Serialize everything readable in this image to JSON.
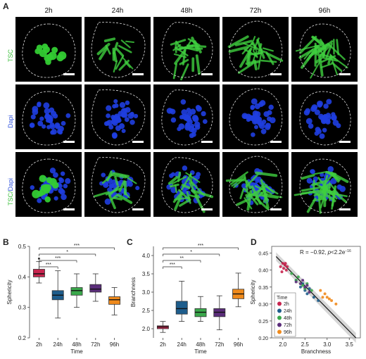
{
  "figure": {
    "panel_a_letter": "A",
    "panel_b_letter": "B",
    "panel_c_letter": "C",
    "panel_d_letter": "D",
    "timepoints": [
      "2h",
      "24h",
      "48h",
      "72h",
      "96h"
    ],
    "rows": [
      {
        "label": "TSC",
        "color": "#3cbf3c"
      },
      {
        "label": "Dapi",
        "color": "#3355dd"
      },
      {
        "label_a": "TSC",
        "label_sep": "/",
        "label_b": "Dapi"
      }
    ]
  },
  "chart_data": [
    {
      "type": "box",
      "panel": "B",
      "categories": [
        "2h",
        "24h",
        "48h",
        "72h",
        "96h"
      ],
      "colors": [
        "#c8254f",
        "#1e5d8c",
        "#3aa84b",
        "#5b2d7a",
        "#ef8a1c"
      ],
      "boxes": [
        {
          "min": 0.38,
          "q1": 0.4,
          "median": 0.41,
          "q3": 0.425,
          "max": 0.45
        },
        {
          "min": 0.265,
          "q1": 0.325,
          "median": 0.34,
          "q3": 0.355,
          "max": 0.42
        },
        {
          "min": 0.3,
          "q1": 0.34,
          "median": 0.355,
          "q3": 0.365,
          "max": 0.41
        },
        {
          "min": 0.32,
          "q1": 0.35,
          "median": 0.36,
          "q3": 0.375,
          "max": 0.41
        },
        {
          "min": 0.275,
          "q1": 0.31,
          "median": 0.325,
          "q3": 0.335,
          "max": 0.365
        }
      ],
      "outliers": [
        {
          "category": "2h",
          "value": 0.46
        }
      ],
      "ylim": [
        0.2,
        0.5
      ],
      "yticks": [
        "0.2",
        "0.3",
        "0.4",
        "0.5"
      ],
      "ylabel": "Sphericity",
      "xlabel": "Time",
      "significance": [
        {
          "to": "96h",
          "label": "***"
        },
        {
          "to": "72h",
          "label": "*"
        },
        {
          "to": "48h",
          "label": "***"
        },
        {
          "to": "24h",
          "label": "***"
        }
      ]
    },
    {
      "type": "box",
      "panel": "C",
      "categories": [
        "2h",
        "24h",
        "48h",
        "72h",
        "96h"
      ],
      "colors": [
        "#c8254f",
        "#1e5d8c",
        "#3aa84b",
        "#5b2d7a",
        "#ef8a1c"
      ],
      "boxes": [
        {
          "min": 1.9,
          "q1": 2.0,
          "median": 2.05,
          "q3": 2.08,
          "max": 2.2
        },
        {
          "min": 2.2,
          "q1": 2.4,
          "median": 2.55,
          "q3": 2.75,
          "max": 3.3
        },
        {
          "min": 2.2,
          "q1": 2.33,
          "median": 2.45,
          "q3": 2.55,
          "max": 2.88
        },
        {
          "min": 1.97,
          "q1": 2.33,
          "median": 2.45,
          "q3": 2.55,
          "max": 2.9
        },
        {
          "min": 2.6,
          "q1": 2.82,
          "median": 2.95,
          "q3": 3.08,
          "max": 3.52
        }
      ],
      "outliers": [],
      "ylim": [
        1.75,
        4.25
      ],
      "yticks": [
        "2.0",
        "2.5",
        "3.0",
        "3.5",
        "4.0"
      ],
      "ylabel": "Branchness",
      "xlabel": "Time",
      "significance": [
        {
          "to": "96h",
          "label": "***"
        },
        {
          "to": "72h",
          "label": "*"
        },
        {
          "to": "48h",
          "label": "**"
        },
        {
          "to": "24h",
          "label": "***"
        }
      ]
    },
    {
      "type": "scatter",
      "panel": "D",
      "annotation_prefix": "R = −0.92, ",
      "annotation_p": "p",
      "annotation_suffix": "<2.2e",
      "annotation_exp": "−16",
      "xlabel": "Branchness",
      "ylabel": "Sphericity",
      "xlim": [
        1.75,
        3.75
      ],
      "ylim": [
        0.2,
        0.47
      ],
      "xticks": [
        "2.0",
        "2.5",
        "3.0",
        "3.5"
      ],
      "yticks": [
        "0.20",
        "0.25",
        "0.30",
        "0.35",
        "0.40",
        "0.45"
      ],
      "legend_title": "Time",
      "legend_position": "left",
      "regression": {
        "x1": 1.85,
        "y1": 0.44,
        "x2": 3.65,
        "y2": 0.2
      },
      "series": [
        {
          "name": "2h",
          "color": "#c8254f",
          "x": [
            1.95,
            2.0,
            2.02,
            2.05,
            2.08,
            2.1,
            1.98,
            2.06
          ],
          "y": [
            0.41,
            0.42,
            0.405,
            0.415,
            0.4,
            0.41,
            0.395,
            0.42
          ]
        },
        {
          "name": "24h",
          "color": "#1e5d8c",
          "x": [
            2.4,
            2.5,
            2.55,
            2.6,
            2.7,
            2.3,
            2.45,
            2.8
          ],
          "y": [
            0.35,
            0.34,
            0.33,
            0.345,
            0.32,
            0.37,
            0.36,
            0.31
          ]
        },
        {
          "name": "48h",
          "color": "#3aa84b",
          "x": [
            2.3,
            2.45,
            2.5,
            2.55,
            2.35,
            2.65,
            2.2
          ],
          "y": [
            0.37,
            0.355,
            0.345,
            0.36,
            0.38,
            0.34,
            0.39
          ]
        },
        {
          "name": "72h",
          "color": "#5b2d7a",
          "x": [
            2.3,
            2.4,
            2.5,
            2.45,
            2.6,
            2.55
          ],
          "y": [
            0.365,
            0.36,
            0.35,
            0.37,
            0.335,
            0.355
          ]
        },
        {
          "name": "96h",
          "color": "#ef8a1c",
          "x": [
            2.95,
            3.05,
            2.9,
            3.1,
            2.85,
            3.2,
            3.0
          ],
          "y": [
            0.33,
            0.315,
            0.32,
            0.31,
            0.34,
            0.3,
            0.32
          ]
        }
      ]
    }
  ]
}
